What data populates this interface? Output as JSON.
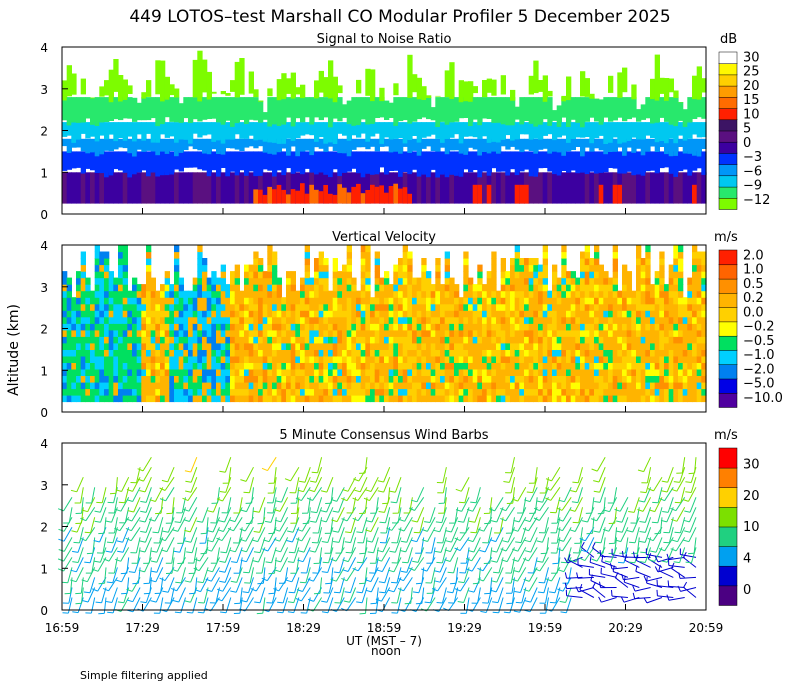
{
  "header": {
    "title": "449 LOTOS–test Marshall CO Modular Profiler  5 December 2025",
    "ylabel": "Altitude (km)",
    "xlabel": "UT  (MST – 7)",
    "noon_label": "noon",
    "footer": "Simple filtering applied"
  },
  "colors": {
    "snr": [
      "#7dfc00",
      "#28e86c",
      "#00c8f0",
      "#0096f8",
      "#0032ff",
      "#3c00a0",
      "#5a1080",
      "#3c1464",
      "#ff2000",
      "#ff6c00",
      "#ff9c00",
      "#ffd000",
      "#fff800",
      "#ffffff"
    ],
    "vel": [
      "#330033",
      "#3a0a7a",
      "#5000a0",
      "#0000e6",
      "#0080f0",
      "#00d0ff",
      "#00e060",
      "#ffff00",
      "#ffd000",
      "#ffb400",
      "#ff9000",
      "#ff6400",
      "#ff2000"
    ],
    "wind": [
      "#4b0082",
      "#0000d0",
      "#00a0f0",
      "#20d080",
      "#7ce000",
      "#ffd000",
      "#ff8000",
      "#ff0000"
    ]
  },
  "chart_data": [
    {
      "type": "heatmap",
      "title": "Signal to Noise Ratio",
      "unit": "dB",
      "x_range": [
        "16:59",
        "20:59"
      ],
      "ylim": [
        0,
        4
      ],
      "yticks": [
        "0",
        "1",
        "2",
        "3",
        "4"
      ],
      "xticks": [
        "16:59",
        "17:29",
        "17:59",
        "18:29",
        "18:59",
        "19:29",
        "19:59",
        "20:29",
        "20:59"
      ],
      "colorbar": [
        "30",
        "25",
        "20",
        "15",
        "10",
        "5",
        "0",
        "−3",
        "−6",
        "−9",
        "−12"
      ],
      "bands": [
        {
          "altitude_km": [
            0.25,
            1.0
          ],
          "value_db": 5
        },
        {
          "altitude_km": [
            1.0,
            1.5
          ],
          "value_db": 0
        },
        {
          "altitude_km": [
            1.5,
            1.8
          ],
          "value_db": -3
        },
        {
          "altitude_km": [
            1.8,
            2.2
          ],
          "value_db": -6
        },
        {
          "altitude_km": [
            2.2,
            2.8
          ],
          "value_db": -9
        },
        {
          "altitude_km": [
            2.8,
            4.0
          ],
          "value_db": -12
        }
      ],
      "notable": "SNR 10–15 dB below ~0.7 km between 18:09 and 19:09"
    },
    {
      "type": "heatmap",
      "title": "Vertical Velocity",
      "unit": "m/s",
      "x_range": [
        "16:59",
        "20:59"
      ],
      "ylim": [
        0,
        4
      ],
      "yticks": [
        "0",
        "1",
        "2",
        "3",
        "4"
      ],
      "colorbar": [
        "2.0",
        "1.0",
        "0.5",
        "0.2",
        "0.0",
        "−0.2",
        "−0.5",
        "−1.0",
        "−2.0",
        "−5.0",
        "−10.0"
      ],
      "dominant_range": [
        -0.5,
        0.5
      ]
    },
    {
      "type": "scatter",
      "title": "5 Minute Consensus Wind Barbs",
      "unit": "m/s",
      "x_range": [
        "16:59",
        "20:59"
      ],
      "ylim": [
        0,
        4
      ],
      "yticks": [
        "0",
        "1",
        "2",
        "3",
        "4"
      ],
      "colorbar": [
        "30",
        "20",
        "10",
        "4",
        "0"
      ],
      "profile": [
        {
          "altitude_km": 0.5,
          "speed_ms": 6
        },
        {
          "altitude_km": 1.0,
          "speed_ms": 7
        },
        {
          "altitude_km": 1.5,
          "speed_ms": 8
        },
        {
          "altitude_km": 2.0,
          "speed_ms": 9
        },
        {
          "altitude_km": 2.5,
          "speed_ms": 10
        },
        {
          "altitude_km": 3.0,
          "speed_ms": 12
        },
        {
          "altitude_km": 3.5,
          "speed_ms": 14
        }
      ],
      "notable": "Weak winds (< 4 m/s) below ~1.4 km after 20:09"
    }
  ]
}
